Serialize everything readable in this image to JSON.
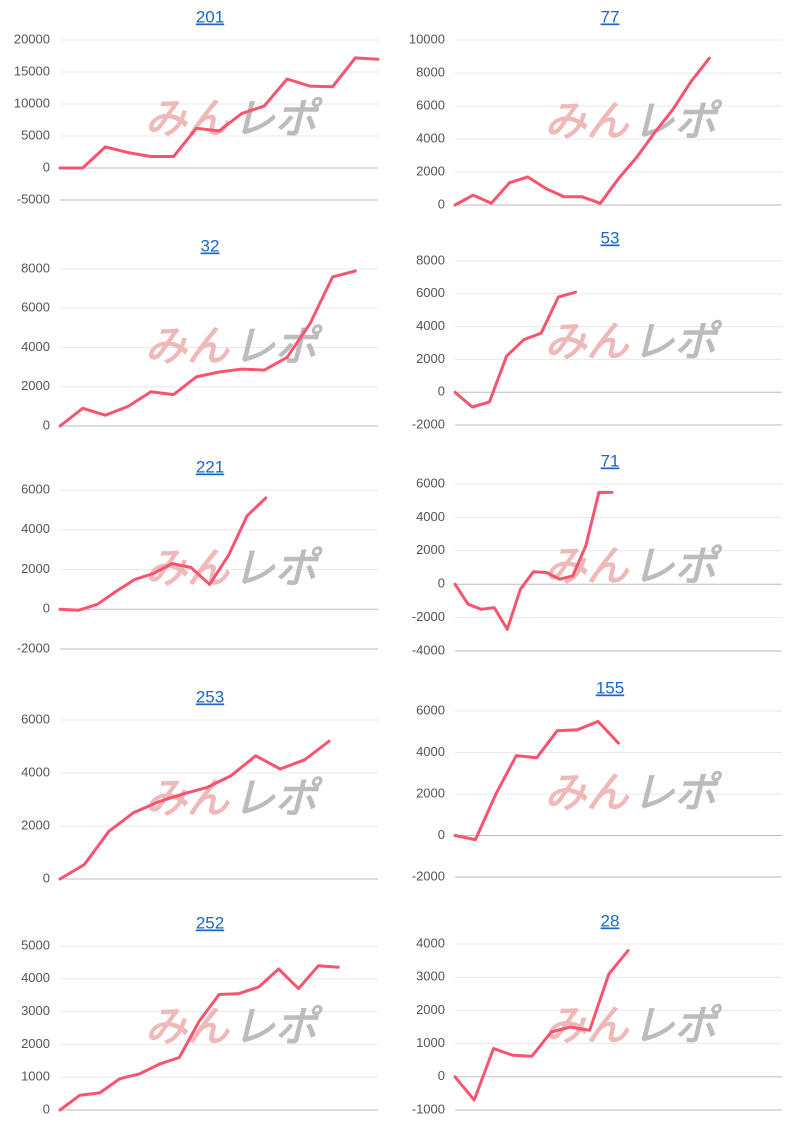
{
  "watermark": [
    "みん",
    "レポ"
  ],
  "chart_data": [
    {
      "type": "line",
      "title": "201",
      "color": "#f7546f",
      "ylim": [
        -5000,
        20000
      ],
      "yticks": [
        -5000,
        0,
        5000,
        10000,
        15000,
        20000
      ],
      "grid": true,
      "values": [
        0,
        0,
        3300,
        2400,
        1800,
        1800,
        6200,
        5800,
        8500,
        9700,
        13900,
        12800,
        12700,
        17200,
        17000
      ]
    },
    {
      "type": "line",
      "title": "77",
      "color": "#f7546f",
      "ylim": [
        0,
        10000
      ],
      "yticks": [
        0,
        2000,
        4000,
        6000,
        8000,
        10000
      ],
      "grid": true,
      "values": [
        0,
        600,
        100,
        1350,
        1700,
        1000,
        500,
        500,
        100,
        1600,
        2900,
        4400,
        5800,
        7500,
        8900,
        null,
        null,
        null,
        null
      ]
    },
    {
      "type": "line",
      "title": "32",
      "color": "#f7546f",
      "ylim": [
        0,
        8000
      ],
      "yticks": [
        0,
        2000,
        4000,
        6000,
        8000
      ],
      "grid": true,
      "values": [
        0,
        900,
        550,
        1000,
        1750,
        1600,
        2500,
        2750,
        2900,
        2850,
        3500,
        5200,
        7600,
        7900,
        null
      ]
    },
    {
      "type": "line",
      "title": "53",
      "color": "#f7546f",
      "ylim": [
        -2000,
        8000
      ],
      "yticks": [
        -2000,
        0,
        2000,
        4000,
        6000,
        8000
      ],
      "grid": true,
      "values": [
        0,
        -900,
        -600,
        2200,
        3200,
        3600,
        5800,
        6100,
        null,
        null,
        null,
        null,
        null,
        null,
        null,
        null,
        null,
        null,
        null,
        null
      ]
    },
    {
      "type": "line",
      "title": "221",
      "color": "#f7546f",
      "ylim": [
        -2000,
        6000
      ],
      "yticks": [
        -2000,
        0,
        2000,
        4000,
        6000
      ],
      "grid": true,
      "values": [
        0,
        -50,
        250,
        900,
        1500,
        1800,
        2300,
        2100,
        1250,
        2700,
        4700,
        5600,
        null,
        null,
        null,
        null,
        null,
        null
      ]
    },
    {
      "type": "line",
      "title": "71",
      "color": "#f7546f",
      "ylim": [
        -4000,
        6000
      ],
      "yticks": [
        -4000,
        -2000,
        0,
        2000,
        4000,
        6000
      ],
      "grid": true,
      "values": [
        0,
        -1200,
        -1500,
        -1400,
        -2700,
        -300,
        750,
        700,
        300,
        500,
        2300,
        5500,
        5500,
        null,
        null,
        null,
        null,
        null,
        null,
        null,
        null,
        null,
        null,
        null,
        null,
        null
      ]
    },
    {
      "type": "line",
      "title": "253",
      "color": "#f7546f",
      "ylim": [
        0,
        6000
      ],
      "yticks": [
        0,
        2000,
        4000,
        6000
      ],
      "grid": true,
      "values": [
        0,
        550,
        1800,
        2500,
        2900,
        3200,
        3450,
        3900,
        4650,
        4150,
        4500,
        5200,
        null,
        null
      ]
    },
    {
      "type": "line",
      "title": "155",
      "color": "#f7546f",
      "ylim": [
        -2000,
        6000
      ],
      "yticks": [
        -2000,
        0,
        2000,
        4000,
        6000
      ],
      "grid": true,
      "values": [
        0,
        -200,
        2000,
        3850,
        3750,
        5050,
        5100,
        5500,
        4450,
        null,
        null,
        null,
        null,
        null,
        null,
        null,
        null
      ]
    },
    {
      "type": "line",
      "title": "252",
      "color": "#f7546f",
      "ylim": [
        0,
        5000
      ],
      "yticks": [
        0,
        1000,
        2000,
        3000,
        4000,
        5000
      ],
      "grid": true,
      "values": [
        0,
        450,
        520,
        950,
        1100,
        1400,
        1600,
        2700,
        3520,
        3550,
        3750,
        4300,
        3700,
        4400,
        4350,
        null,
        null
      ]
    },
    {
      "type": "line",
      "title": "28",
      "color": "#f7546f",
      "ylim": [
        -1000,
        4000
      ],
      "yticks": [
        -1000,
        0,
        1000,
        2000,
        3000,
        4000
      ],
      "grid": true,
      "values": [
        0,
        -700,
        850,
        650,
        620,
        1350,
        1500,
        1400,
        3100,
        3800,
        null,
        null,
        null,
        null,
        null,
        null,
        null,
        null
      ]
    }
  ]
}
